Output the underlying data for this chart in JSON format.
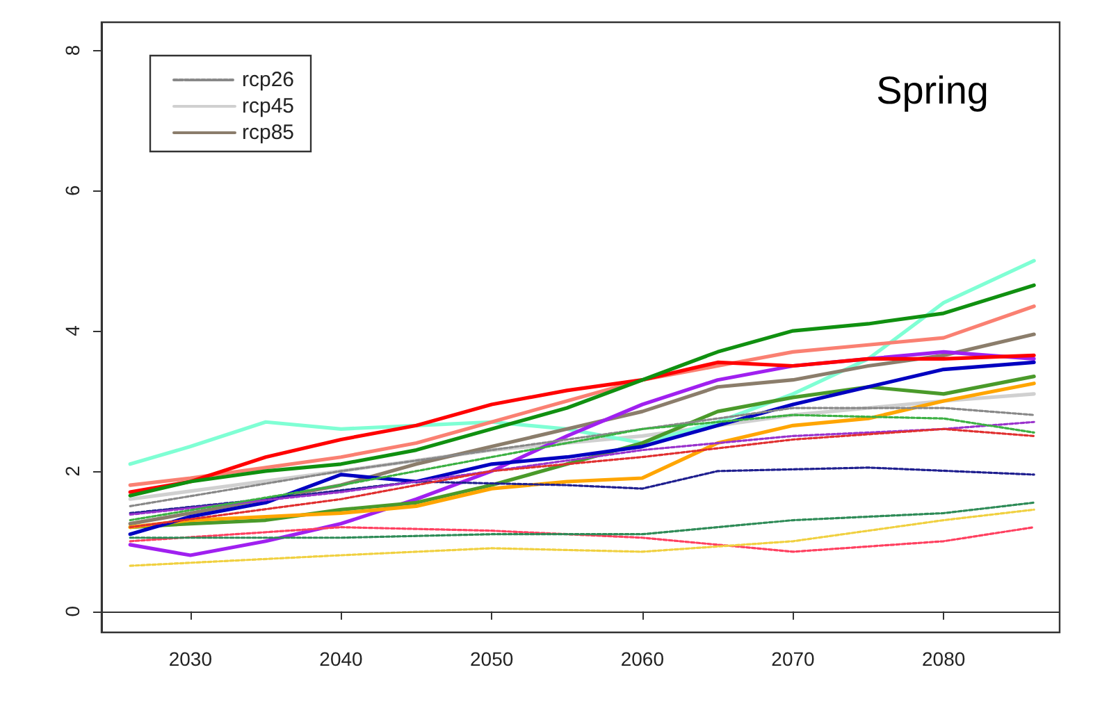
{
  "chart_data": {
    "type": "line",
    "title": "Spring",
    "xlim": [
      2024.1,
      2087.7
    ],
    "xticks": [
      2030,
      2040,
      2050,
      2060,
      2070,
      2080
    ],
    "ylim": [
      -0.3,
      8.4
    ],
    "yticks": [
      0,
      2,
      4,
      6,
      8
    ],
    "legend": "top left",
    "marker": "none",
    "series": [
      {
        "name": "rcp45",
        "color": "#d0d0d0",
        "line_style": "solid",
        "x": [
          2026,
          2040,
          2050,
          2060,
          2070,
          2080,
          2086
        ],
        "values": [
          1.6,
          2.0,
          2.3,
          2.5,
          2.8,
          3.0,
          3.1
        ]
      },
      {
        "color": "#1f1f8f",
        "line_style": "dashed",
        "x": [
          2026,
          2035,
          2045,
          2055,
          2060,
          2065,
          2075,
          2086
        ],
        "values": [
          1.4,
          1.6,
          1.85,
          1.8,
          1.75,
          2.0,
          2.05,
          1.95
        ]
      },
      {
        "name": "rcp26",
        "color": "#888888",
        "line_style": "dashed",
        "x": [
          2026,
          2040,
          2050,
          2060,
          2070,
          2080,
          2086
        ],
        "values": [
          1.5,
          2.0,
          2.3,
          2.6,
          2.9,
          2.9,
          2.8
        ]
      },
      {
        "color": "#ff4060",
        "line_style": "dashed",
        "x": [
          2026,
          2040,
          2050,
          2060,
          2070,
          2080,
          2086
        ],
        "values": [
          1.0,
          1.2,
          1.15,
          1.05,
          0.85,
          1.0,
          1.2
        ]
      },
      {
        "color": "#2e8b57",
        "line_style": "dashed",
        "x": [
          2026,
          2040,
          2050,
          2060,
          2070,
          2080,
          2086
        ],
        "values": [
          1.05,
          1.05,
          1.1,
          1.1,
          1.3,
          1.4,
          1.55
        ]
      },
      {
        "color": "#f0d040",
        "line_style": "dashed",
        "x": [
          2026,
          2040,
          2050,
          2060,
          2070,
          2080,
          2086
        ],
        "values": [
          0.65,
          0.8,
          0.9,
          0.85,
          1.0,
          1.3,
          1.45
        ]
      },
      {
        "color": "#9932cc",
        "line_style": "dashed",
        "x": [
          2026,
          2040,
          2050,
          2060,
          2070,
          2080,
          2086
        ],
        "values": [
          1.38,
          1.7,
          2.0,
          2.3,
          2.5,
          2.6,
          2.7
        ]
      },
      {
        "color": "#e03030",
        "line_style": "dashed",
        "x": [
          2026,
          2040,
          2050,
          2060,
          2070,
          2080,
          2086
        ],
        "values": [
          1.2,
          1.6,
          2.0,
          2.2,
          2.45,
          2.6,
          2.5
        ]
      },
      {
        "color": "#3cb043",
        "line_style": "dashed",
        "x": [
          2026,
          2040,
          2050,
          2060,
          2070,
          2080,
          2086
        ],
        "values": [
          1.3,
          1.8,
          2.2,
          2.6,
          2.8,
          2.75,
          2.55
        ]
      },
      {
        "color": "#7fffd4",
        "line_style": "solid",
        "x": [
          2026,
          2030,
          2035,
          2040,
          2045,
          2050,
          2055,
          2060,
          2065,
          2070,
          2075,
          2080,
          2086
        ],
        "values": [
          2.1,
          2.35,
          2.7,
          2.6,
          2.65,
          2.7,
          2.6,
          2.4,
          2.7,
          3.1,
          3.6,
          4.4,
          5.0
        ]
      },
      {
        "color": "#fa8072",
        "line_style": "solid",
        "x": [
          2026,
          2030,
          2035,
          2040,
          2045,
          2050,
          2055,
          2060,
          2065,
          2070,
          2075,
          2080,
          2086
        ],
        "values": [
          1.8,
          1.9,
          2.05,
          2.2,
          2.4,
          2.7,
          3.0,
          3.3,
          3.5,
          3.7,
          3.8,
          3.9,
          4.35
        ]
      },
      {
        "name": "rcp85",
        "color": "#8b7d6b",
        "line_style": "solid",
        "x": [
          2026,
          2030,
          2035,
          2040,
          2045,
          2050,
          2055,
          2060,
          2065,
          2070,
          2075,
          2080,
          2086
        ],
        "values": [
          1.25,
          1.4,
          1.6,
          1.8,
          2.1,
          2.35,
          2.6,
          2.85,
          3.2,
          3.3,
          3.5,
          3.65,
          3.95
        ]
      },
      {
        "color": "#a020f0",
        "line_style": "solid",
        "x": [
          2026,
          2030,
          2035,
          2040,
          2045,
          2050,
          2055,
          2060,
          2065,
          2070,
          2075,
          2080,
          2086
        ],
        "values": [
          0.95,
          0.8,
          1.0,
          1.25,
          1.6,
          2.0,
          2.5,
          2.95,
          3.3,
          3.5,
          3.6,
          3.7,
          3.6
        ]
      },
      {
        "color": "#ff0000",
        "line_style": "solid",
        "x": [
          2026,
          2030,
          2035,
          2040,
          2045,
          2050,
          2055,
          2060,
          2065,
          2070,
          2075,
          2080,
          2086
        ],
        "values": [
          1.7,
          1.85,
          2.2,
          2.45,
          2.65,
          2.95,
          3.15,
          3.3,
          3.55,
          3.5,
          3.6,
          3.6,
          3.65
        ]
      },
      {
        "color": "#4a9a2a",
        "line_style": "solid",
        "x": [
          2026,
          2030,
          2035,
          2040,
          2045,
          2050,
          2055,
          2060,
          2065,
          2070,
          2075,
          2080,
          2086
        ],
        "values": [
          1.2,
          1.25,
          1.3,
          1.45,
          1.55,
          1.8,
          2.1,
          2.4,
          2.85,
          3.05,
          3.2,
          3.1,
          3.35
        ]
      },
      {
        "color": "#ffa500",
        "line_style": "solid",
        "x": [
          2026,
          2030,
          2035,
          2040,
          2045,
          2050,
          2055,
          2060,
          2065,
          2070,
          2075,
          2080,
          2086
        ],
        "values": [
          1.2,
          1.3,
          1.35,
          1.4,
          1.5,
          1.75,
          1.85,
          1.9,
          2.4,
          2.65,
          2.75,
          3.0,
          3.25
        ]
      },
      {
        "color": "#0000c0",
        "line_style": "solid",
        "x": [
          2026,
          2030,
          2035,
          2040,
          2045,
          2050,
          2055,
          2060,
          2065,
          2070,
          2075,
          2080,
          2086
        ],
        "values": [
          1.1,
          1.35,
          1.55,
          1.95,
          1.85,
          2.1,
          2.2,
          2.35,
          2.65,
          2.95,
          3.2,
          3.45,
          3.55
        ]
      },
      {
        "color": "#109010",
        "line_style": "solid",
        "x": [
          2026,
          2030,
          2035,
          2040,
          2045,
          2050,
          2055,
          2060,
          2065,
          2070,
          2075,
          2080,
          2086
        ],
        "values": [
          1.65,
          1.85,
          2.0,
          2.1,
          2.3,
          2.6,
          2.9,
          3.3,
          3.7,
          4.0,
          4.1,
          4.25,
          4.65
        ]
      }
    ]
  }
}
